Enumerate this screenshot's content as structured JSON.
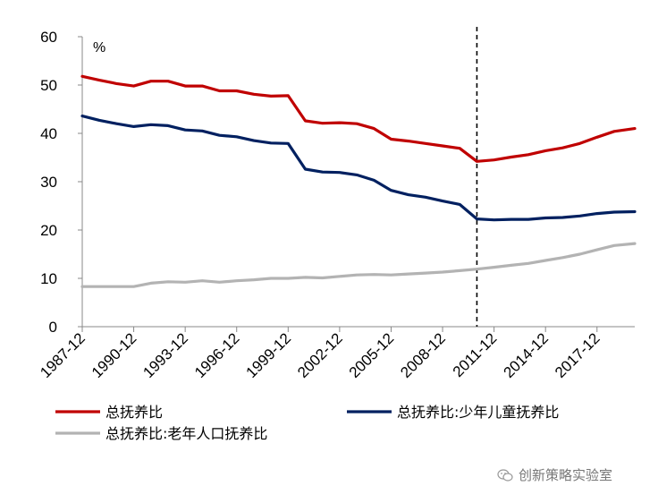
{
  "chart_data": {
    "type": "line",
    "unit": "%",
    "ylim": [
      0,
      60
    ],
    "yticks": [
      0,
      10,
      20,
      30,
      40,
      50,
      60
    ],
    "xlim": [
      1987,
      2019.2
    ],
    "xticks": [
      "1987-12",
      "1990-12",
      "1993-12",
      "1996-12",
      "1999-12",
      "2002-12",
      "2005-12",
      "2008-12",
      "2011-12",
      "2014-12",
      "2017-12"
    ],
    "vline": 2010,
    "legend_position": "bottom",
    "series": [
      {
        "name": "总抚养比",
        "color": "#c00000",
        "x": [
          1987,
          1988,
          1989,
          1990,
          1991,
          1992,
          1993,
          1994,
          1995,
          1996,
          1997,
          1998,
          1999,
          2000,
          2001,
          2002,
          2003,
          2004,
          2005,
          2006,
          2007,
          2008,
          2009,
          2010,
          2011,
          2012,
          2013,
          2014,
          2015,
          2016,
          2017,
          2018,
          2019.2
        ],
        "y": [
          51.8,
          51.0,
          50.3,
          49.8,
          50.8,
          50.8,
          49.8,
          49.8,
          48.8,
          48.8,
          48.1,
          47.7,
          47.8,
          42.6,
          42.1,
          42.2,
          42.0,
          41.0,
          38.8,
          38.4,
          37.9,
          37.4,
          36.9,
          34.2,
          34.5,
          35.1,
          35.6,
          36.4,
          37.0,
          37.9,
          39.2,
          40.4,
          41.0
        ]
      },
      {
        "name": "总抚养比:少年儿童抚养比",
        "color": "#002060",
        "x": [
          1987,
          1988,
          1989,
          1990,
          1991,
          1992,
          1993,
          1994,
          1995,
          1996,
          1997,
          1998,
          1999,
          2000,
          2001,
          2002,
          2003,
          2004,
          2005,
          2006,
          2007,
          2008,
          2009,
          2010,
          2011,
          2012,
          2013,
          2014,
          2015,
          2016,
          2017,
          2018,
          2019.2
        ],
        "y": [
          43.6,
          42.7,
          42.0,
          41.4,
          41.8,
          41.6,
          40.7,
          40.5,
          39.6,
          39.3,
          38.5,
          38.0,
          37.9,
          32.6,
          32.0,
          31.9,
          31.4,
          30.3,
          28.2,
          27.3,
          26.8,
          26.0,
          25.3,
          22.3,
          22.1,
          22.2,
          22.2,
          22.5,
          22.6,
          22.9,
          23.4,
          23.7,
          23.8
        ]
      },
      {
        "name": "总抚养比:老年人口抚养比",
        "color": "#b3b3b3",
        "x": [
          1987,
          1988,
          1989,
          1990,
          1991,
          1992,
          1993,
          1994,
          1995,
          1996,
          1997,
          1998,
          1999,
          2000,
          2001,
          2002,
          2003,
          2004,
          2005,
          2006,
          2007,
          2008,
          2009,
          2010,
          2011,
          2012,
          2013,
          2014,
          2015,
          2016,
          2017,
          2018,
          2019.2
        ],
        "y": [
          8.3,
          8.3,
          8.3,
          8.3,
          9.0,
          9.3,
          9.2,
          9.5,
          9.2,
          9.5,
          9.7,
          10.0,
          10.0,
          10.2,
          10.1,
          10.4,
          10.7,
          10.8,
          10.7,
          10.9,
          11.1,
          11.3,
          11.6,
          11.9,
          12.3,
          12.7,
          13.1,
          13.7,
          14.3,
          15.0,
          15.9,
          16.8,
          17.2
        ]
      }
    ]
  },
  "watermark": {
    "icon": "wechat-icon",
    "text": "创新策略实验室"
  }
}
